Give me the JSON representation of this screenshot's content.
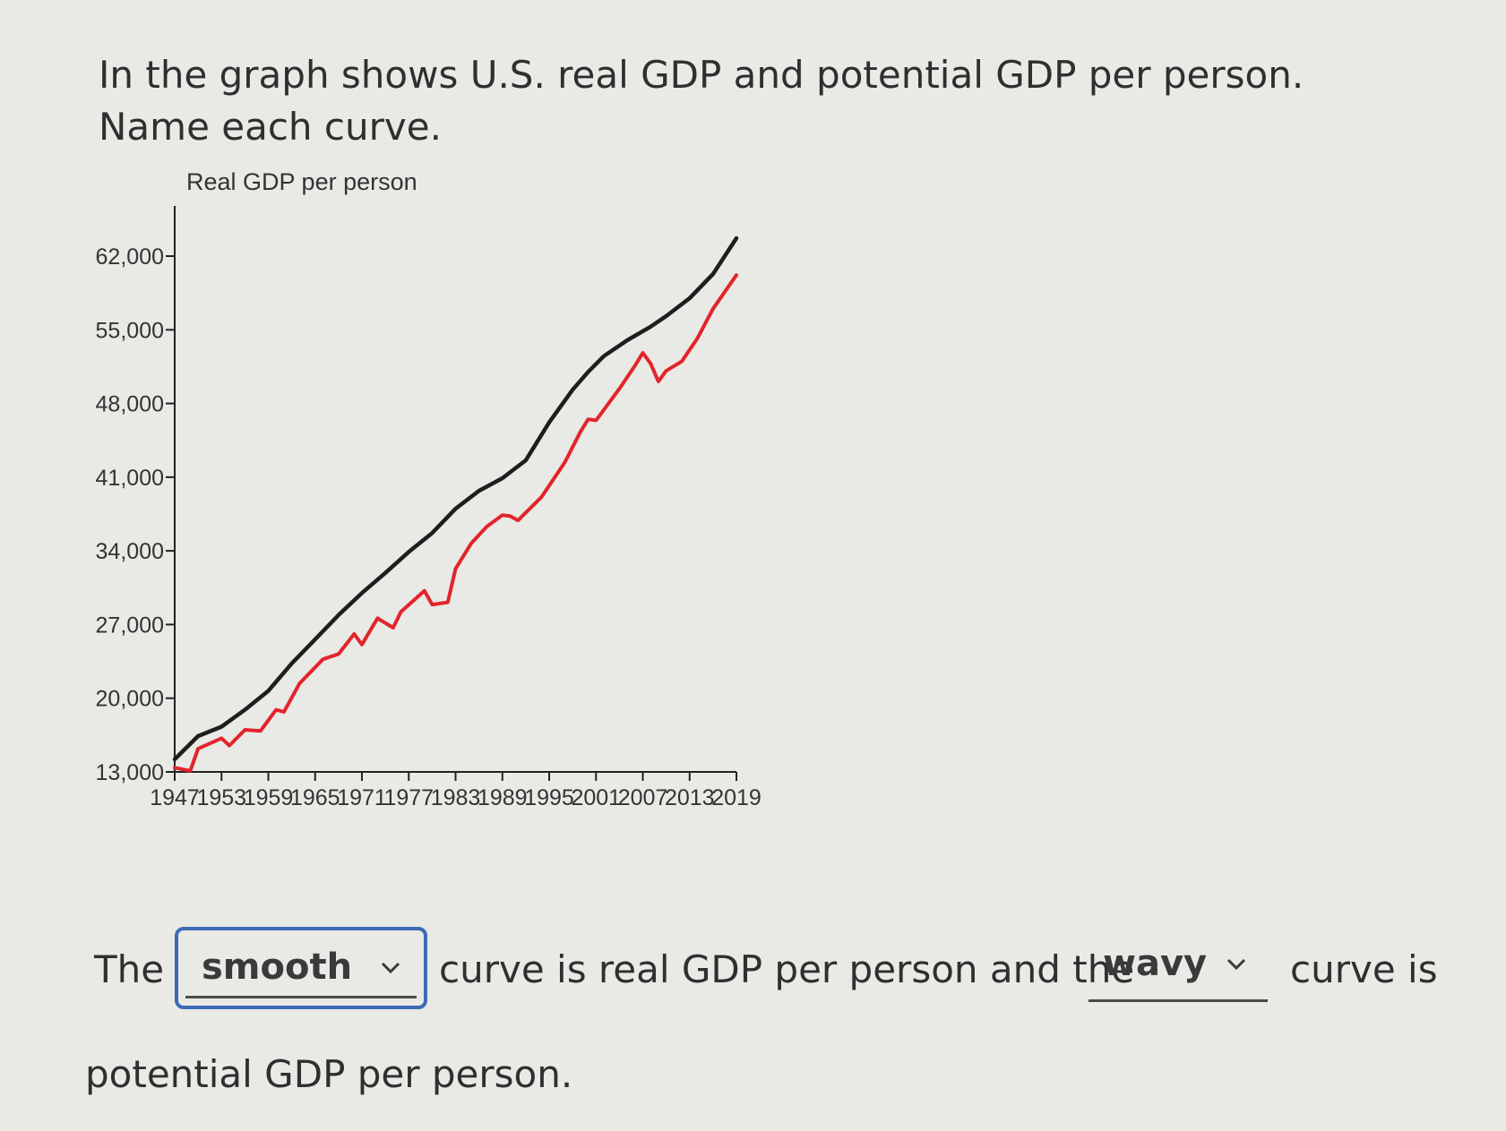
{
  "question": {
    "text": "In the graph shows U.S. real GDP and potential GDP per person. Name each curve."
  },
  "chart_data": {
    "type": "line",
    "title": "Real GDP per person",
    "xlabel": "",
    "ylabel": "",
    "x_ticks": [
      "1947",
      "1953",
      "1959",
      "1965",
      "1971",
      "1977",
      "1983",
      "1989",
      "1995",
      "2001",
      "2007",
      "2013",
      "2019"
    ],
    "y_ticks": [
      "13,000",
      "20,000",
      "27,000",
      "34,000",
      "41,000",
      "48,000",
      "55,000",
      "62,000"
    ],
    "xlim": [
      1947,
      2019
    ],
    "ylim": [
      13000,
      62000
    ],
    "grid": false,
    "series": [
      {
        "color": "#1e1e1e",
        "x": [
          1947,
          1950,
          1953,
          1956,
          1959,
          1962,
          1965,
          1968,
          1971,
          1974,
          1977,
          1980,
          1983,
          1986,
          1989,
          1992,
          1995,
          1998,
          2000,
          2002,
          2005,
          2008,
          2010,
          2013,
          2016,
          2019
        ],
        "y": [
          14200,
          16400,
          17300,
          18900,
          20700,
          23300,
          25600,
          27900,
          30000,
          31900,
          33900,
          35700,
          38000,
          39700,
          40900,
          42600,
          46200,
          49300,
          51000,
          52500,
          54000,
          55300,
          56300,
          58000,
          60300,
          63700
        ]
      },
      {
        "color": "#e2242b",
        "x": [
          1947,
          1949,
          1950,
          1953,
          1954,
          1956,
          1958,
          1960,
          1961,
          1963,
          1966,
          1968,
          1970,
          1971,
          1973,
          1975,
          1976,
          1979,
          1980,
          1982,
          1983,
          1985,
          1987,
          1989,
          1990,
          1991,
          1994,
          1997,
          1999,
          2000,
          2001,
          2004,
          2006,
          2007,
          2008,
          2009,
          2010,
          2012,
          2014,
          2016,
          2019
        ],
        "y": [
          13400,
          13100,
          15200,
          16200,
          15500,
          17000,
          16900,
          18900,
          18700,
          21400,
          23700,
          24200,
          26100,
          25100,
          27600,
          26700,
          28200,
          30200,
          28900,
          29100,
          32300,
          34700,
          36300,
          37400,
          37300,
          36900,
          39100,
          42400,
          45300,
          46500,
          46400,
          49400,
          51600,
          52800,
          51800,
          50100,
          51100,
          52000,
          54200,
          57000,
          60200
        ]
      }
    ]
  },
  "answer": {
    "prefix": "The",
    "dropdown1_value": "smooth",
    "middle": "curve is real GDP per person and the",
    "dropdown2_value": "wavy",
    "suffix": "curve is",
    "line2": "potential GDP per person."
  }
}
